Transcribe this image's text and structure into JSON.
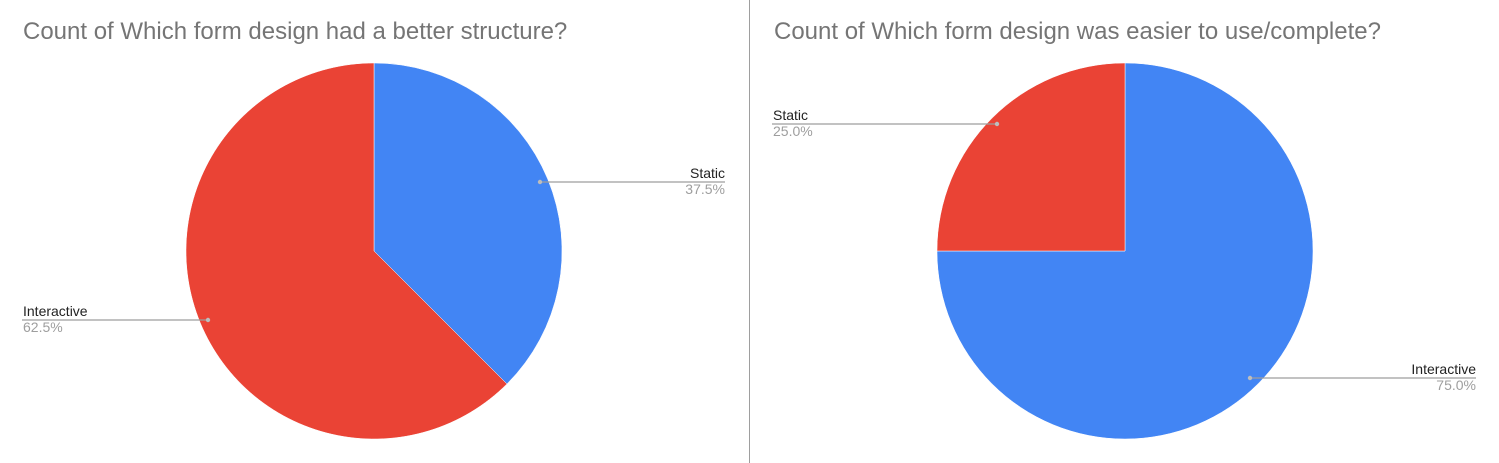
{
  "chart_data": [
    {
      "type": "pie",
      "title": "Count of Which form design had a better structure?",
      "labels": [
        "Static",
        "Interactive"
      ],
      "values": [
        37.5,
        62.5
      ],
      "value_labels": [
        "37.5%",
        "62.5%"
      ],
      "colors": [
        "#4285f4",
        "#ea4335"
      ]
    },
    {
      "type": "pie",
      "title": "Count of Which form design was easier to use/complete?",
      "labels": [
        "Interactive",
        "Static"
      ],
      "values": [
        75.0,
        25.0
      ],
      "value_labels": [
        "75.0%",
        "25.0%"
      ],
      "colors": [
        "#4285f4",
        "#ea4335"
      ]
    }
  ]
}
